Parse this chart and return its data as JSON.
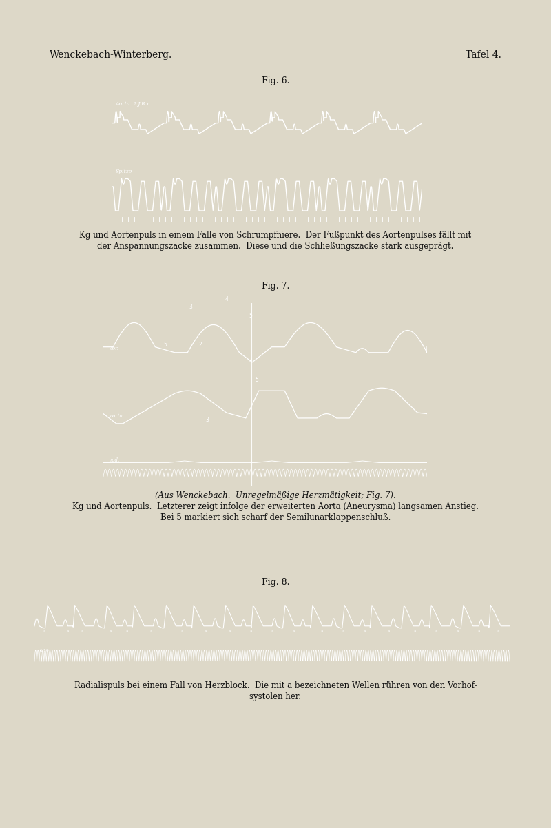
{
  "background_color": "#ddd8c8",
  "page_width": 8.0,
  "page_height": 12.02,
  "header_left": "Wenckebach-Winterberg.",
  "header_right": "Tafel 4.",
  "header_fontsize": 10,
  "fig6_label": "Fig. 6.",
  "fig6_caption_line1": "Kg und Aortenpuls in einem Falle von Schrumpfniere.  Der Fußpunkt des Aortenpulses fällt mit",
  "fig6_caption_line2": "der Anspannungszacke zusammen.  Diese und die Schließungszacke stark ausgeprägt.",
  "fig6_aorta_label": "Aorta  2.J.R.r",
  "fig6_spitze_label": "Spitze",
  "fig7_label": "Fig. 7.",
  "fig7_caption_line1": "(Aus Wenckebach.  Unregelmäßige Herzтätigkeit; Fig. 7).",
  "fig7_caption_line2": "Kg und Aortenpuls.  Letzterer zeigt infolge der erweiterten Aorta (Aneurysma) langsamen Anstieg.",
  "fig7_caption_line3": "Bei 5 markiert sich scharf der Semilunarklappenschluß.",
  "fig7_cor_label": "cor.",
  "fig7_aorta_label": "aorta.",
  "fig7_rad_label": "rad.",
  "fig8_label": "Fig. 8.",
  "fig8_caption_line1": "Radialispuls bei einem Fall von Herzblock.  Die mit a bezeichneten Wellen rühren von den Vorhof-",
  "fig8_caption_line2": "systolen her.",
  "img_bg": "#000000",
  "wave_color": "#ffffff",
  "caption_fontsize": 8.5,
  "label_fontsize": 9
}
